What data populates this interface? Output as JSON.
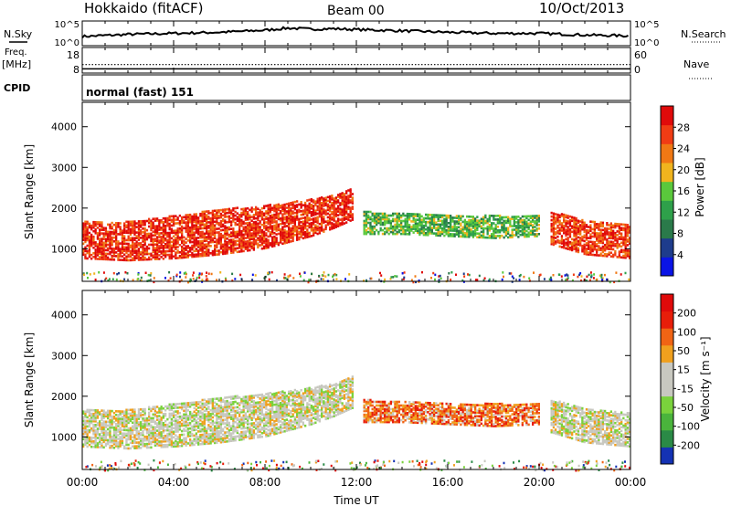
{
  "header": {
    "station": "Hokkaido (fitACF)",
    "beam": "Beam 00",
    "date": "10/Oct/2013"
  },
  "side_labels": {
    "nsky": "N.Sky",
    "freq": "Freq.",
    "freq_unit": "[MHz]",
    "cpid": "CPID",
    "nsearch": "N.Search",
    "nave": "Nave"
  },
  "cpid_text": "normal (fast) 151",
  "chart_data": [
    {
      "type": "line",
      "panel": "noise",
      "left_ticks": [
        "10^5",
        "10^0"
      ],
      "right_ticks": [
        "10^5",
        "10^0"
      ],
      "series": [
        {
          "name": "N.Sky",
          "x": [
            0,
            2,
            4,
            6,
            8,
            9,
            10,
            11,
            12,
            14,
            16,
            18,
            20,
            22,
            24
          ],
          "values": [
            0.35,
            0.45,
            0.5,
            0.55,
            0.65,
            0.75,
            0.7,
            0.72,
            0.68,
            0.62,
            0.55,
            0.5,
            0.5,
            0.42,
            0.38
          ]
        }
      ]
    },
    {
      "type": "line",
      "panel": "frequency",
      "left_ticks": [
        "18",
        "8"
      ],
      "right_ticks": [
        "60",
        "0"
      ],
      "series": [
        {
          "name": "Freq.",
          "x": [
            0,
            24
          ],
          "values": [
            10.9,
            10.9
          ]
        },
        {
          "name": "Nave",
          "x": [
            0,
            24
          ],
          "values": [
            35,
            35
          ]
        }
      ]
    },
    {
      "type": "heatmap",
      "panel": "power",
      "ylabel": "Slant Range [km]",
      "y_ticks": [
        "1000",
        "2000",
        "3000",
        "4000"
      ],
      "ylim": [
        200,
        4600
      ],
      "colorbar_label": "Power [dB]",
      "colorbar_ticks": [
        "4",
        "8",
        "12",
        "16",
        "20",
        "24",
        "28"
      ],
      "colors": [
        "#0a14e6",
        "#1e3c8c",
        "#2a7a4a",
        "#2ea04a",
        "#5ac83c",
        "#f0b41e",
        "#f07814",
        "#f03c14",
        "#e00a0a"
      ],
      "bands": [
        {
          "x": [
            0,
            2,
            4,
            6,
            8,
            10,
            11,
            11.8
          ],
          "lo": [
            750,
            700,
            750,
            850,
            1000,
            1300,
            1500,
            1700
          ],
          "hi": [
            1650,
            1650,
            1800,
            1950,
            2050,
            2200,
            2300,
            2500
          ],
          "level": 0.88
        },
        {
          "x": [
            12.3,
            14,
            16,
            18,
            20
          ],
          "lo": [
            1350,
            1350,
            1300,
            1250,
            1300
          ],
          "hi": [
            1900,
            1850,
            1800,
            1800,
            1800
          ],
          "level": 0.45
        },
        {
          "x": [
            20.5,
            22,
            24
          ],
          "lo": [
            1100,
            850,
            750
          ],
          "hi": [
            1900,
            1700,
            1600
          ],
          "level": 0.85
        }
      ]
    },
    {
      "type": "heatmap",
      "panel": "velocity",
      "ylabel": "Slant Range [km]",
      "y_ticks": [
        "1000",
        "2000",
        "3000",
        "4000"
      ],
      "ylim": [
        200,
        4600
      ],
      "xlabel": "Time UT",
      "x_ticks": [
        "00:00",
        "04:00",
        "08:00",
        "12:00",
        "16:00",
        "20:00",
        "00:00"
      ],
      "colorbar_label": "Velocity [m s⁻¹]",
      "colorbar_ticks": [
        "200",
        "100",
        "50",
        "15",
        "-15",
        "-50",
        "-100",
        "-200"
      ],
      "colors": [
        "#1432b4",
        "#2a8a46",
        "#4ab43c",
        "#7ad23c",
        "#c8c8c0",
        "#c8c8c0",
        "#f0a01e",
        "#f06414",
        "#e81e0a",
        "#e00a0a"
      ],
      "bands": [
        {
          "x": [
            0,
            2,
            4,
            6,
            8,
            10,
            11,
            11.8
          ],
          "lo": [
            750,
            700,
            750,
            850,
            1000,
            1300,
            1500,
            1700
          ],
          "hi": [
            1650,
            1650,
            1800,
            1950,
            2050,
            2200,
            2300,
            2500
          ],
          "level": 0.5
        },
        {
          "x": [
            12.3,
            14,
            16,
            18,
            20
          ],
          "lo": [
            1350,
            1350,
            1300,
            1250,
            1300
          ],
          "hi": [
            1900,
            1850,
            1800,
            1800,
            1800
          ],
          "level": 0.72
        },
        {
          "x": [
            20.5,
            22,
            24
          ],
          "lo": [
            1100,
            850,
            750
          ],
          "hi": [
            1900,
            1700,
            1600
          ],
          "level": 0.5
        }
      ]
    }
  ]
}
